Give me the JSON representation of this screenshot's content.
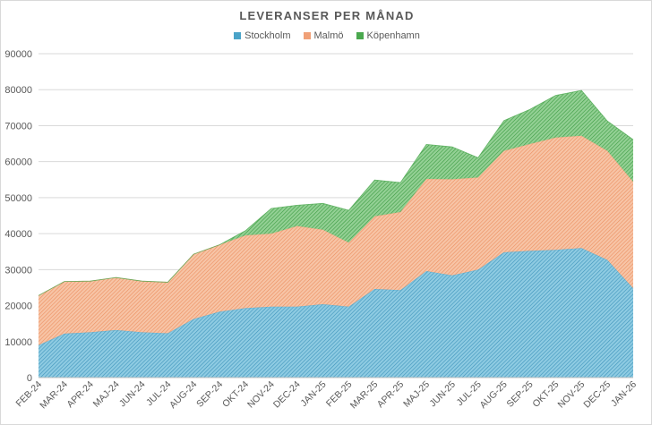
{
  "chart_data": {
    "type": "area",
    "stacked": true,
    "title": "LEVERANSER PER MÅNAD",
    "categories": [
      "FEB-24",
      "MAR-24",
      "APR-24",
      "MAJ-24",
      "JUN-24",
      "JUL-24",
      "AUG-24",
      "SEP-24",
      "OKT-24",
      "NOV-24",
      "DEC-24",
      "JAN-25",
      "FEB-25",
      "MAR-25",
      "APR-25",
      "MAJ-25",
      "JUN-25",
      "JUL-25",
      "AUG-25",
      "SEP-25",
      "OKT-25",
      "NOV-25",
      "DEC-25",
      "JAN-26"
    ],
    "series": [
      {
        "name": "Stockholm",
        "color": "#4aa3c8",
        "values": [
          9000,
          12200,
          12600,
          13200,
          12600,
          12300,
          16300,
          18300,
          19300,
          19700,
          19700,
          20400,
          19700,
          24600,
          24300,
          29600,
          28400,
          30000,
          34800,
          35200,
          35500,
          36000,
          32700,
          24800
        ]
      },
      {
        "name": "Malmö",
        "color": "#f0a077",
        "values": [
          13800,
          14500,
          14200,
          14600,
          14200,
          14200,
          18000,
          18600,
          20200,
          20300,
          22400,
          20700,
          17800,
          20200,
          21700,
          25600,
          26700,
          25600,
          28200,
          29700,
          31200,
          31200,
          30300,
          29600
        ]
      },
      {
        "name": "Köpenhamn",
        "color": "#4aa84e",
        "values": [
          0,
          0,
          0,
          0,
          0,
          0,
          0,
          0,
          1300,
          7000,
          5800,
          7300,
          9000,
          10100,
          8200,
          9600,
          9000,
          5500,
          8400,
          9600,
          11700,
          12600,
          8300,
          11700
        ]
      }
    ],
    "ylim": [
      0,
      90000
    ],
    "yticks": [
      0,
      10000,
      20000,
      30000,
      40000,
      50000,
      60000,
      70000,
      80000,
      90000
    ],
    "grid": true,
    "legend_position": "top"
  }
}
